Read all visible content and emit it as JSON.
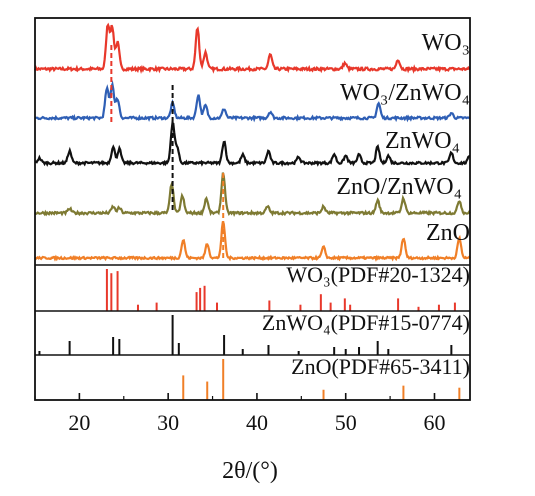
{
  "chart_data": {
    "type": "line",
    "xlabel": "2θ/(°)",
    "xlim": [
      15,
      64
    ],
    "xticks": [
      20,
      30,
      40,
      50,
      60
    ],
    "grid": false,
    "series": [
      {
        "name": "WO₃",
        "color": "#e8382b",
        "peaks": [
          [
            23.2,
            0.9
          ],
          [
            23.7,
            0.85
          ],
          [
            24.3,
            0.55
          ],
          [
            33.3,
            0.85
          ],
          [
            34.2,
            0.35
          ],
          [
            41.5,
            0.3
          ],
          [
            49.9,
            0.12
          ],
          [
            55.9,
            0.2
          ]
        ]
      },
      {
        "name": "WO₃/ZnWO₄",
        "color": "#2f5fb5",
        "peaks": [
          [
            23.1,
            0.7
          ],
          [
            23.7,
            0.8
          ],
          [
            24.3,
            0.45
          ],
          [
            30.5,
            0.35
          ],
          [
            33.4,
            0.55
          ],
          [
            34.2,
            0.3
          ],
          [
            36.3,
            0.22
          ],
          [
            41.5,
            0.15
          ],
          [
            53.7,
            0.35
          ],
          [
            61.9,
            0.12
          ]
        ]
      },
      {
        "name": "ZnWO₄",
        "color": "#111111",
        "peaks": [
          [
            15.5,
            0.12
          ],
          [
            18.9,
            0.3
          ],
          [
            23.8,
            0.4
          ],
          [
            24.5,
            0.35
          ],
          [
            30.5,
            1.0
          ],
          [
            31.0,
            0.4
          ],
          [
            36.3,
            0.55
          ],
          [
            38.4,
            0.2
          ],
          [
            41.3,
            0.3
          ],
          [
            44.7,
            0.15
          ],
          [
            48.7,
            0.22
          ],
          [
            50.0,
            0.18
          ],
          [
            51.5,
            0.2
          ],
          [
            53.6,
            0.4
          ],
          [
            54.8,
            0.18
          ],
          [
            61.9,
            0.25
          ],
          [
            64.0,
            0.2
          ]
        ]
      },
      {
        "name": "ZnO/ZnWO₄",
        "color": "#7e7a33",
        "peaks": [
          [
            18.9,
            0.1
          ],
          [
            23.8,
            0.15
          ],
          [
            24.5,
            0.12
          ],
          [
            30.4,
            0.7
          ],
          [
            31.6,
            0.4
          ],
          [
            34.3,
            0.35
          ],
          [
            36.2,
            0.95
          ],
          [
            41.2,
            0.15
          ],
          [
            47.5,
            0.15
          ],
          [
            53.6,
            0.3
          ],
          [
            56.5,
            0.35
          ],
          [
            62.8,
            0.3
          ]
        ]
      },
      {
        "name": "ZnO",
        "color": "#f07f27",
        "peaks": [
          [
            31.7,
            0.5
          ],
          [
            34.4,
            0.4
          ],
          [
            36.2,
            1.0
          ],
          [
            47.5,
            0.3
          ],
          [
            56.5,
            0.55
          ],
          [
            62.8,
            0.55
          ]
        ]
      }
    ],
    "references": [
      {
        "name": "WO₃(PDF#20-1324)",
        "color": "#e8382b",
        "lines": [
          [
            23.1,
            1.0
          ],
          [
            23.6,
            0.9
          ],
          [
            24.3,
            0.95
          ],
          [
            26.6,
            0.15
          ],
          [
            28.7,
            0.2
          ],
          [
            33.2,
            0.45
          ],
          [
            33.6,
            0.55
          ],
          [
            34.1,
            0.6
          ],
          [
            35.5,
            0.2
          ],
          [
            41.4,
            0.25
          ],
          [
            44.9,
            0.15
          ],
          [
            47.2,
            0.4
          ],
          [
            48.3,
            0.2
          ],
          [
            49.9,
            0.3
          ],
          [
            50.5,
            0.15
          ],
          [
            55.9,
            0.3
          ],
          [
            58.2,
            0.1
          ],
          [
            60.5,
            0.15
          ],
          [
            62.3,
            0.2
          ]
        ]
      },
      {
        "name": "ZnWO₄(PDF#15-0774)",
        "color": "#111111",
        "lines": [
          [
            15.5,
            0.1
          ],
          [
            18.9,
            0.35
          ],
          [
            23.8,
            0.45
          ],
          [
            24.5,
            0.4
          ],
          [
            30.5,
            1.0
          ],
          [
            31.2,
            0.3
          ],
          [
            36.3,
            0.5
          ],
          [
            38.4,
            0.15
          ],
          [
            41.3,
            0.25
          ],
          [
            44.7,
            0.1
          ],
          [
            48.7,
            0.2
          ],
          [
            50.0,
            0.15
          ],
          [
            51.5,
            0.2
          ],
          [
            53.6,
            0.35
          ],
          [
            54.8,
            0.15
          ],
          [
            61.9,
            0.25
          ]
        ]
      },
      {
        "name": "ZnO(PDF#65-3411)",
        "color": "#f07f27",
        "lines": [
          [
            31.7,
            0.6
          ],
          [
            34.4,
            0.45
          ],
          [
            36.2,
            1.0
          ],
          [
            47.5,
            0.25
          ],
          [
            56.5,
            0.35
          ],
          [
            62.8,
            0.3
          ]
        ]
      }
    ],
    "marker_lines": [
      {
        "x": 23.6,
        "color": "#e8382b",
        "style": "dashed"
      },
      {
        "x": 30.5,
        "color": "#111111",
        "style": "dashed"
      },
      {
        "x": 36.2,
        "color": "#f07f27",
        "style": "dashed"
      }
    ]
  }
}
